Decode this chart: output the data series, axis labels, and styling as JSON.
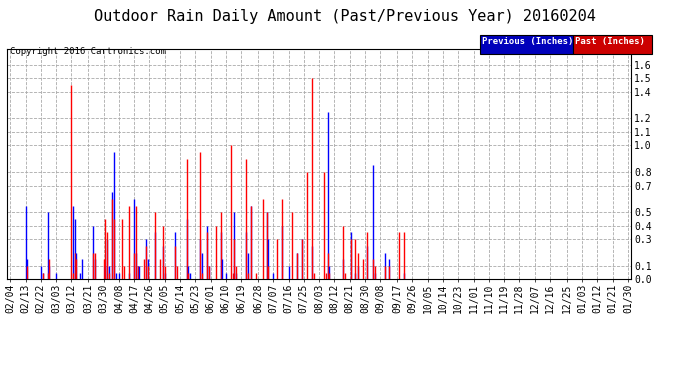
{
  "title": "Outdoor Rain Daily Amount (Past/Previous Year) 20160204",
  "copyright_text": "Copyright 2016 Cartronics.com",
  "legend_labels": [
    "Previous (Inches)",
    "Past (Inches)"
  ],
  "legend_colors": [
    "#0000ff",
    "#ff0000"
  ],
  "legend_bg_blue": "#0000bb",
  "legend_bg_red": "#cc0000",
  "ylabel_right_ticks": [
    0.0,
    0.1,
    0.3,
    0.4,
    0.5,
    0.7,
    0.8,
    1.0,
    1.1,
    1.2,
    1.4,
    1.5,
    1.6
  ],
  "ylim": [
    0.0,
    1.72
  ],
  "background_color": "#ffffff",
  "plot_bg_color": "#ffffff",
  "grid_color": "#aaaaaa",
  "title_fontsize": 11,
  "tick_fontsize": 7,
  "x_tick_labels": [
    "02/04",
    "02/13",
    "02/22",
    "03/03",
    "03/12",
    "03/21",
    "03/30",
    "04/08",
    "04/17",
    "04/26",
    "05/05",
    "05/14",
    "05/23",
    "06/01",
    "06/10",
    "06/19",
    "06/28",
    "07/07",
    "07/16",
    "07/25",
    "08/03",
    "08/12",
    "08/21",
    "08/30",
    "09/08",
    "09/17",
    "09/26",
    "10/05",
    "10/14",
    "10/23",
    "11/01",
    "11/10",
    "11/19",
    "11/28",
    "12/07",
    "12/16",
    "12/25",
    "01/03",
    "01/12",
    "01/21",
    "01/30"
  ],
  "blue_rain": [
    0.0,
    0.0,
    0.0,
    0.0,
    0.0,
    0.0,
    0.0,
    0.0,
    0.0,
    0.55,
    0.15,
    0.0,
    0.0,
    0.0,
    0.0,
    0.0,
    0.0,
    0.0,
    0.1,
    0.05,
    0.0,
    0.0,
    0.5,
    0.1,
    0.0,
    0.0,
    0.0,
    0.05,
    0.0,
    0.0,
    0.0,
    0.0,
    0.0,
    0.0,
    0.0,
    0.0,
    0.0,
    0.55,
    0.45,
    0.2,
    0.0,
    0.05,
    0.15,
    0.0,
    0.0,
    0.0,
    0.0,
    0.0,
    0.0,
    0.4,
    0.15,
    0.0,
    0.0,
    0.0,
    0.0,
    0.0,
    0.1,
    0.3,
    0.1,
    0.0,
    0.65,
    0.95,
    0.05,
    0.0,
    0.05,
    0.0,
    0.0,
    0.0,
    0.0,
    0.0,
    0.05,
    0.0,
    0.0,
    0.6,
    0.2,
    0.1,
    0.1,
    0.0,
    0.0,
    0.0,
    0.3,
    0.15,
    0.0,
    0.0,
    0.0,
    0.35,
    0.0,
    0.0,
    0.0,
    0.0,
    0.25,
    0.05,
    0.0,
    0.0,
    0.0,
    0.0,
    0.0,
    0.35,
    0.0,
    0.0,
    0.0,
    0.0,
    0.0,
    0.0,
    0.45,
    0.1,
    0.05,
    0.0,
    0.0,
    0.0,
    0.0,
    0.0,
    0.3,
    0.2,
    0.0,
    0.0,
    0.4,
    0.1,
    0.0,
    0.0,
    0.0,
    0.0,
    0.0,
    0.0,
    0.35,
    0.15,
    0.0,
    0.05,
    0.0,
    0.0,
    0.0,
    0.0,
    0.5,
    0.05,
    0.0,
    0.0,
    0.0,
    0.0,
    0.0,
    0.35,
    0.2,
    0.0,
    0.55,
    0.0,
    0.0,
    0.0,
    0.0,
    0.0,
    0.0,
    0.0,
    0.0,
    0.5,
    0.3,
    0.0,
    0.0,
    0.05,
    0.0,
    0.0,
    0.0,
    0.0,
    0.4,
    0.0,
    0.0,
    0.0,
    0.1,
    0.0,
    0.0,
    0.0,
    0.0,
    0.2,
    0.0,
    0.0,
    0.3,
    0.0,
    0.0,
    0.0,
    0.0,
    0.0,
    0.25,
    0.0,
    0.0,
    0.0,
    0.0,
    0.0,
    0.0,
    0.0,
    0.0,
    1.25,
    0.1,
    0.0,
    0.0,
    0.0,
    0.0,
    0.0,
    0.0,
    0.0,
    0.15,
    0.0,
    0.0,
    0.0,
    0.0,
    0.35,
    0.0,
    0.05,
    0.0,
    0.1,
    0.0,
    0.0,
    0.0,
    0.0,
    0.25,
    0.0,
    0.0,
    0.0,
    0.85,
    0.05,
    0.0,
    0.0,
    0.0,
    0.0,
    0.0,
    0.2,
    0.0,
    0.15,
    0.0,
    0.0,
    0.0,
    0.0,
    0.0,
    0.0,
    0.0,
    0.0,
    0.05,
    0.0,
    0.0,
    0.0,
    0.0,
    0.0,
    0.0,
    0.0,
    0.0,
    0.0,
    0.0,
    0.0,
    0.0,
    0.0,
    0.0,
    0.0,
    0.0,
    0.0,
    0.0,
    0.0,
    0.0,
    0.0,
    0.0,
    0.0,
    0.0,
    0.0,
    0.0,
    0.0,
    0.0,
    0.0,
    0.0,
    0.0,
    0.0,
    0.0,
    0.0,
    0.0,
    0.0,
    0.0,
    0.0,
    0.0,
    0.0,
    0.0,
    0.0,
    0.0,
    0.0,
    0.0,
    0.0,
    0.0,
    0.0,
    0.0,
    0.0,
    0.0,
    0.0,
    0.0,
    0.0,
    0.0,
    0.0,
    0.0,
    0.0,
    0.0,
    0.0,
    0.0,
    0.0,
    0.0,
    0.0,
    0.0,
    0.0,
    0.0,
    0.0,
    0.0,
    0.0,
    0.0,
    0.0,
    0.0,
    0.0,
    0.0,
    0.0,
    0.0,
    0.0,
    0.0,
    0.0,
    0.0,
    0.0,
    0.0,
    0.0,
    0.0,
    0.0,
    0.0,
    0.0,
    0.0,
    0.0,
    0.0,
    0.0,
    0.0,
    0.0,
    0.0,
    0.0,
    0.0,
    0.0,
    0.0,
    0.0,
    0.0,
    0.0,
    0.0,
    0.0,
    0.0,
    0.0,
    0.0,
    0.0,
    0.0,
    0.0,
    0.0,
    0.0,
    0.0,
    0.0,
    0.0,
    0.0,
    0.0,
    0.0,
    0.0,
    0.0,
    0.0,
    0.0,
    0.0,
    0.0,
    0.0,
    0.0,
    0.0,
    0.0,
    0.0,
    0.0,
    0.0,
    0.0
  ],
  "red_rain": [
    0.0,
    0.0,
    0.0,
    0.0,
    0.0,
    0.0,
    0.0,
    0.0,
    0.0,
    0.0,
    0.1,
    0.0,
    0.0,
    0.0,
    0.0,
    0.0,
    0.0,
    0.0,
    0.0,
    0.05,
    0.0,
    0.0,
    0.05,
    0.15,
    0.0,
    0.0,
    0.0,
    0.0,
    0.0,
    0.0,
    0.0,
    0.0,
    0.0,
    0.0,
    0.0,
    0.0,
    1.45,
    0.05,
    0.2,
    0.15,
    0.0,
    0.0,
    0.0,
    0.0,
    0.0,
    0.0,
    0.0,
    0.0,
    0.0,
    0.2,
    0.2,
    0.0,
    0.0,
    0.0,
    0.0,
    0.15,
    0.45,
    0.35,
    0.05,
    0.0,
    0.6,
    0.45,
    0.0,
    0.0,
    0.0,
    0.0,
    0.45,
    0.1,
    0.0,
    0.0,
    0.55,
    0.0,
    0.0,
    0.2,
    0.55,
    0.1,
    0.0,
    0.0,
    0.0,
    0.15,
    0.25,
    0.1,
    0.0,
    0.0,
    0.0,
    0.5,
    0.0,
    0.0,
    0.15,
    0.0,
    0.4,
    0.1,
    0.0,
    0.0,
    0.0,
    0.0,
    0.0,
    0.25,
    0.1,
    0.0,
    0.0,
    0.0,
    0.0,
    0.0,
    0.9,
    0.05,
    0.0,
    0.0,
    0.0,
    0.0,
    0.0,
    0.0,
    0.95,
    0.05,
    0.0,
    0.0,
    0.35,
    0.1,
    0.0,
    0.0,
    0.0,
    0.4,
    0.0,
    0.0,
    0.5,
    0.0,
    0.0,
    0.0,
    0.0,
    0.0,
    1.0,
    0.05,
    0.3,
    0.1,
    0.0,
    0.0,
    0.0,
    0.0,
    0.0,
    0.9,
    0.05,
    0.0,
    0.55,
    0.0,
    0.0,
    0.05,
    0.0,
    0.0,
    0.0,
    0.6,
    0.0,
    0.5,
    0.1,
    0.0,
    0.0,
    0.0,
    0.0,
    0.3,
    0.0,
    0.0,
    0.6,
    0.0,
    0.0,
    0.0,
    0.0,
    0.0,
    0.5,
    0.0,
    0.0,
    0.2,
    0.0,
    0.0,
    0.3,
    0.0,
    0.0,
    0.8,
    0.0,
    0.0,
    1.5,
    0.05,
    0.0,
    0.0,
    0.0,
    0.0,
    0.0,
    0.8,
    0.05,
    0.2,
    0.05,
    0.0,
    0.0,
    0.0,
    0.0,
    0.0,
    0.0,
    0.0,
    0.4,
    0.05,
    0.0,
    0.0,
    0.0,
    0.3,
    0.0,
    0.3,
    0.0,
    0.2,
    0.0,
    0.0,
    0.15,
    0.0,
    0.35,
    0.0,
    0.0,
    0.0,
    0.15,
    0.1,
    0.0,
    0.0,
    0.0,
    0.0,
    0.0,
    0.1,
    0.0,
    0.1,
    0.0,
    0.0,
    0.0,
    0.0,
    0.0,
    0.35,
    0.0,
    0.0,
    0.35,
    0.0,
    0.0,
    0.0,
    0.0,
    0.0,
    0.0,
    0.0,
    0.0,
    0.0,
    0.0,
    0.0,
    0.0,
    0.0,
    0.0,
    0.0,
    0.0,
    0.0,
    0.0,
    0.0,
    0.0,
    0.0,
    0.0,
    0.0,
    0.0,
    0.0,
    0.0,
    0.0,
    0.0,
    0.0,
    0.0,
    0.0,
    0.0,
    0.0,
    0.0,
    0.0,
    0.0,
    0.0,
    0.0,
    0.0,
    0.0,
    0.0,
    0.0,
    0.0,
    0.0,
    0.0,
    0.0,
    0.0,
    0.0,
    0.0,
    0.0,
    0.0,
    0.0,
    0.0,
    0.0,
    0.0,
    0.0,
    0.0,
    0.0,
    0.0,
    0.0,
    0.0,
    0.0,
    0.0,
    0.0,
    0.0,
    0.0,
    0.0,
    0.0,
    0.0,
    0.0,
    0.0,
    0.0,
    0.0,
    0.0,
    0.0,
    0.0,
    0.0,
    0.0,
    0.0,
    0.0,
    0.0,
    0.0,
    0.0,
    0.0,
    0.0,
    0.0,
    0.0,
    0.0,
    0.0,
    0.0,
    0.0,
    0.0,
    0.0,
    0.0,
    0.0,
    0.0,
    0.0,
    0.0,
    0.0,
    0.0,
    0.0,
    0.0,
    0.0,
    0.0,
    0.0,
    0.0,
    0.0,
    0.0,
    0.0,
    0.0,
    0.0,
    0.0,
    0.0,
    0.0,
    0.0,
    0.0,
    0.0,
    0.0,
    0.0,
    0.0,
    0.0,
    0.0,
    0.0,
    0.0,
    0.0,
    0.0,
    0.0,
    0.0,
    0.0,
    0.0,
    0.0,
    0.0
  ]
}
